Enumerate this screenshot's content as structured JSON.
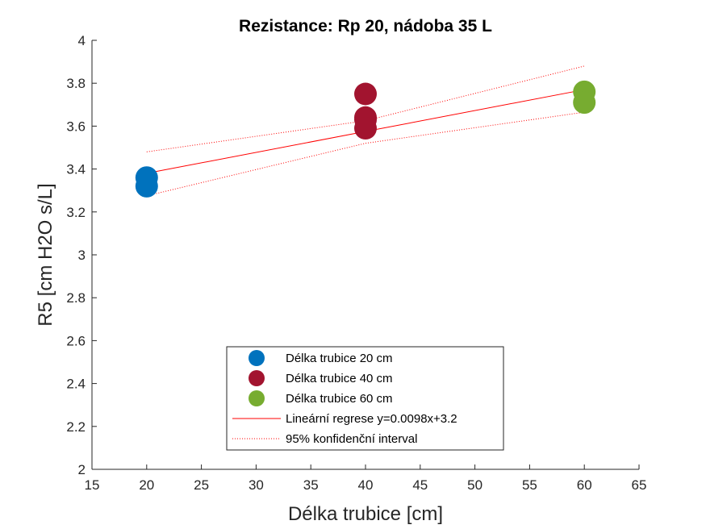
{
  "chart_data": {
    "type": "scatter",
    "title": "Rezistance: Rp 20, nádoba 35 L",
    "xlabel": "Délka trubice [cm]",
    "ylabel": "R5 [cm H2O s/L]",
    "xlim": [
      15,
      65
    ],
    "ylim": [
      2,
      4
    ],
    "xticks": [
      15,
      20,
      25,
      30,
      35,
      40,
      45,
      50,
      55,
      60,
      65
    ],
    "yticks": [
      2,
      2.2,
      2.4,
      2.6,
      2.8,
      3,
      3.2,
      3.4,
      3.6,
      3.8,
      4
    ],
    "grid": false,
    "legend_position": "bottom-center",
    "series": [
      {
        "name": "Délka trubice 20 cm",
        "color": "#0072bd",
        "points": [
          [
            20,
            3.36
          ],
          [
            20,
            3.32
          ]
        ]
      },
      {
        "name": "Délka trubice 40 cm",
        "color": "#a2142f",
        "points": [
          [
            40,
            3.75
          ],
          [
            40,
            3.64
          ],
          [
            40,
            3.63
          ],
          [
            40,
            3.59
          ]
        ]
      },
      {
        "name": "Délka trubice 60 cm",
        "color": "#77ac30",
        "points": [
          [
            60,
            3.76
          ],
          [
            60,
            3.71
          ]
        ]
      }
    ],
    "regression": {
      "name": "Lineární regrese y=0.0098x+3.2",
      "color": "#ff0000",
      "points": [
        [
          20,
          3.38
        ],
        [
          40,
          3.575
        ],
        [
          60,
          3.77
        ]
      ]
    },
    "confidence_interval": {
      "name": "95% konfidenční interval",
      "color": "#ff0000",
      "upper": [
        [
          20,
          3.48
        ],
        [
          40,
          3.625
        ],
        [
          60,
          3.88
        ]
      ],
      "lower": [
        [
          20,
          3.275
        ],
        [
          40,
          3.52
        ],
        [
          60,
          3.665
        ]
      ]
    }
  }
}
